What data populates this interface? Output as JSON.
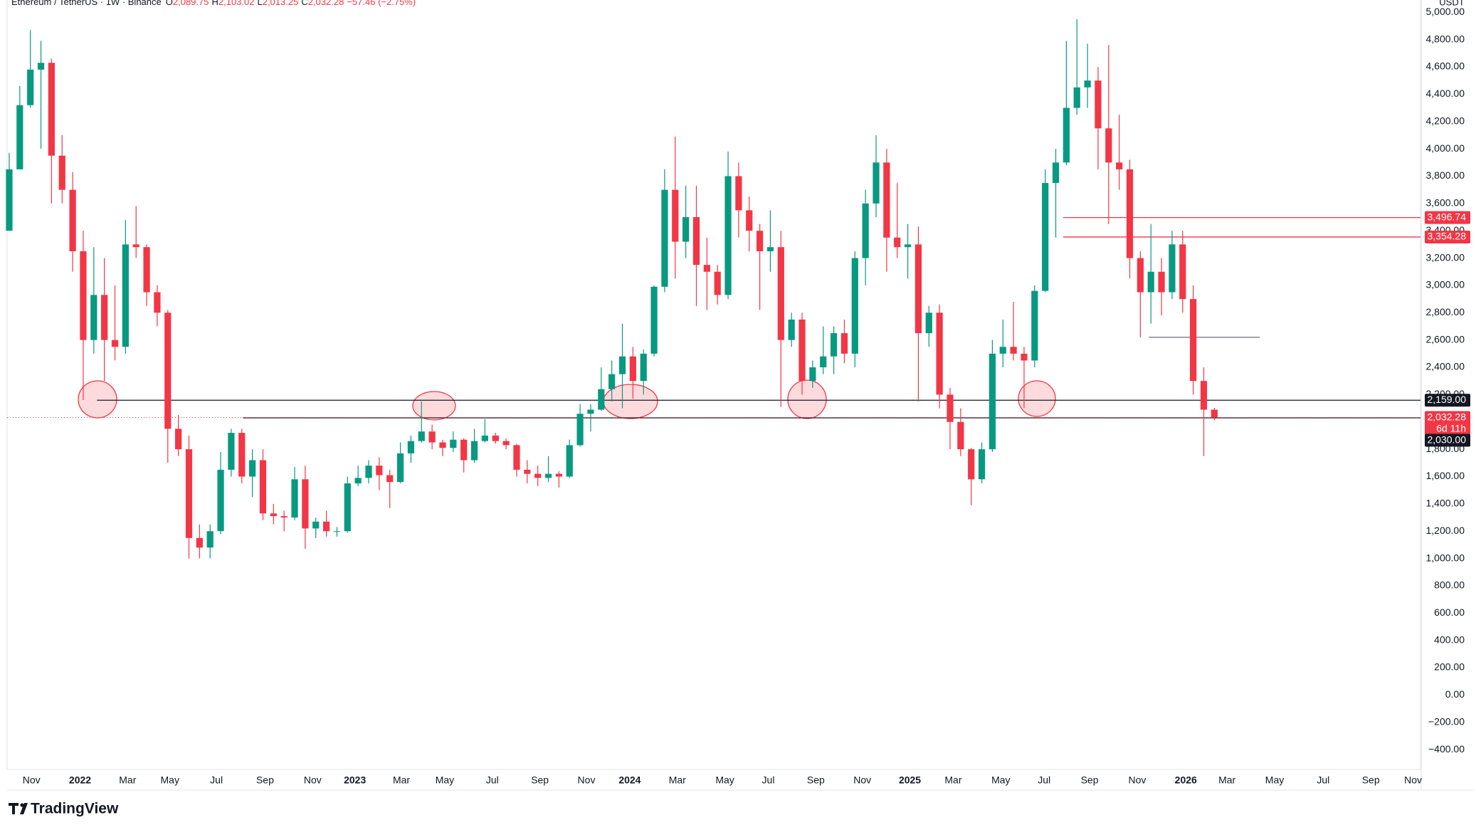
{
  "chart_data": {
    "type": "candlestick",
    "title": "Ethereum / TetherUS · 1W · Binance",
    "header": {
      "ohlc": [
        {
          "key": "O",
          "value": "2,089.75"
        },
        {
          "key": "H",
          "value": "2,103.02"
        },
        {
          "key": "L",
          "value": "2,013.25"
        },
        {
          "key": "C",
          "value": "2,032.28"
        }
      ],
      "change": "−57.46 (−2.75%)"
    },
    "currency": "USDT",
    "up_color": "#089981",
    "down_color": "#f23645",
    "open": [
      3400,
      3850,
      4320,
      4580,
      4630,
      3950,
      3700,
      3250,
      2600,
      2930,
      2600,
      2550,
      3300,
      3280,
      2950,
      2800,
      1950,
      1800,
      1150,
      1080,
      1200,
      1650,
      1920,
      1600,
      1720,
      1330,
      1310,
      1300,
      1580,
      1220,
      1270,
      1200,
      1200,
      1550,
      1590,
      1680,
      1610,
      1560,
      1770,
      1860,
      1930,
      1850,
      1810,
      1870,
      1720,
      1860,
      1900,
      1860,
      1830,
      1650,
      1620,
      1590,
      1620,
      1600,
      1830,
      2060,
      2090,
      2240,
      2350,
      2480,
      2300,
      2500,
      2990,
      3700,
      3320,
      3500,
      3150,
      3100,
      2930,
      3800,
      3550,
      3400,
      3250,
      3280,
      2600,
      2750,
      2300,
      2400,
      2480,
      2650,
      2500,
      3200,
      3600,
      3900,
      3350,
      3280,
      3300,
      2650,
      2800,
      2200,
      2000,
      1800,
      1580,
      1800,
      2500,
      2550,
      2500,
      2450,
      2960,
      3750,
      3900,
      4300,
      4450,
      4500,
      4150,
      3900,
      3850,
      3200,
      2950,
      3100,
      2950,
      3300,
      2900,
      2300,
      2089.75
    ],
    "high": [
      3970,
      4460,
      4870,
      4790,
      4660,
      4100,
      3830,
      3400,
      3280,
      3200,
      3000,
      3480,
      3580,
      3300,
      3000,
      2820,
      2050,
      1900,
      1250,
      1250,
      1780,
      1950,
      1950,
      1800,
      1800,
      1400,
      1350,
      1670,
      1680,
      1300,
      1350,
      1230,
      1600,
      1680,
      1720,
      1740,
      1650,
      1850,
      1900,
      2150,
      1980,
      1870,
      1930,
      1880,
      1950,
      2020,
      1920,
      1880,
      1840,
      1720,
      1680,
      1750,
      1640,
      1870,
      2130,
      2130,
      2400,
      2450,
      2720,
      2550,
      2530,
      3000,
      3850,
      4090,
      3730,
      3730,
      3350,
      3150,
      3980,
      3900,
      3650,
      3450,
      3550,
      3400,
      2800,
      2800,
      2450,
      2700,
      2700,
      2750,
      3250,
      3700,
      4100,
      4000,
      3750,
      3450,
      3430,
      2850,
      2860,
      2250,
      2100,
      1810,
      1850,
      2600,
      2750,
      2880,
      2550,
      3000,
      3850,
      4000,
      4790,
      4950,
      4770,
      4600,
      4760,
      4250,
      3920,
      3250,
      3450,
      3200,
      3400,
      3400,
      3000,
      2400,
      2103.02
    ],
    "low": [
      3400,
      3850,
      4300,
      4000,
      3600,
      3600,
      3100,
      2160,
      2500,
      2300,
      2450,
      2500,
      3200,
      2850,
      2700,
      1700,
      1750,
      1000,
      1000,
      1000,
      1180,
      1600,
      1550,
      1450,
      1280,
      1250,
      1200,
      1280,
      1070,
      1150,
      1160,
      1160,
      1190,
      1530,
      1550,
      1500,
      1370,
      1550,
      1700,
      1850,
      1800,
      1750,
      1780,
      1630,
      1700,
      1850,
      1840,
      1800,
      1600,
      1550,
      1530,
      1560,
      1520,
      1590,
      1820,
      1930,
      2080,
      2150,
      2100,
      2170,
      2200,
      2480,
      2950,
      3050,
      3200,
      2850,
      2820,
      2860,
      2900,
      3350,
      3250,
      2820,
      3100,
      2110,
      2550,
      2200,
      2250,
      2350,
      2350,
      2430,
      2400,
      3000,
      3500,
      3100,
      3200,
      3050,
      2150,
      2550,
      2100,
      1800,
      1750,
      1390,
      1550,
      1780,
      2400,
      2450,
      2100,
      2400,
      2950,
      3350,
      3880,
      4250,
      4300,
      3850,
      3450,
      3700,
      3050,
      2620,
      2720,
      2780,
      2900,
      2800,
      2200,
      1750,
      2013.25
    ],
    "close": [
      3850,
      4320,
      4580,
      4630,
      3950,
      3700,
      3250,
      2600,
      2930,
      2600,
      2550,
      3300,
      3280,
      2950,
      2800,
      1950,
      1800,
      1150,
      1080,
      1200,
      1650,
      1920,
      1600,
      1720,
      1330,
      1310,
      1300,
      1580,
      1220,
      1270,
      1200,
      1200,
      1550,
      1590,
      1680,
      1610,
      1560,
      1770,
      1860,
      1930,
      1850,
      1810,
      1870,
      1720,
      1860,
      1900,
      1860,
      1830,
      1650,
      1620,
      1590,
      1620,
      1600,
      1830,
      2060,
      2090,
      2240,
      2350,
      2480,
      2300,
      2500,
      2990,
      3700,
      3320,
      3500,
      3150,
      3100,
      2930,
      3800,
      3550,
      3400,
      3250,
      3280,
      2600,
      2750,
      2300,
      2400,
      2480,
      2650,
      2500,
      3200,
      3600,
      3900,
      3350,
      3280,
      3300,
      2650,
      2800,
      2200,
      2000,
      1800,
      1580,
      1800,
      2500,
      2550,
      2500,
      2450,
      2960,
      3750,
      3900,
      4300,
      4450,
      4500,
      4150,
      3900,
      3850,
      3200,
      2950,
      3100,
      2950,
      3300,
      2900,
      2300,
      2089.75,
      2032.28
    ],
    "xlim": [
      -0.2,
      133.5
    ],
    "xticks": [
      {
        "value": 2.1,
        "label": "Nov"
      },
      {
        "value": 6.7,
        "label": "2022"
      },
      {
        "value": 11.2,
        "label": "Mar"
      },
      {
        "value": 15.2,
        "label": "May"
      },
      {
        "value": 19.6,
        "label": "Jul"
      },
      {
        "value": 24.2,
        "label": "Sep"
      },
      {
        "value": 28.7,
        "label": "Nov"
      },
      {
        "value": 32.7,
        "label": "2023"
      },
      {
        "value": 37.1,
        "label": "Mar"
      },
      {
        "value": 41.2,
        "label": "May"
      },
      {
        "value": 45.7,
        "label": "Jul"
      },
      {
        "value": 50.2,
        "label": "Sep"
      },
      {
        "value": 54.6,
        "label": "Nov"
      },
      {
        "value": 58.7,
        "label": "2024"
      },
      {
        "value": 63.2,
        "label": "Mar"
      },
      {
        "value": 67.7,
        "label": "May"
      },
      {
        "value": 71.8,
        "label": "Jul"
      },
      {
        "value": 76.3,
        "label": "Sep"
      },
      {
        "value": 80.7,
        "label": "Nov"
      },
      {
        "value": 85.2,
        "label": "2025"
      },
      {
        "value": 89.3,
        "label": "Mar"
      },
      {
        "value": 93.8,
        "label": "May"
      },
      {
        "value": 97.9,
        "label": "Jul"
      },
      {
        "value": 102.2,
        "label": "Sep"
      },
      {
        "value": 106.7,
        "label": "Nov"
      },
      {
        "value": 111.3,
        "label": "2026"
      },
      {
        "value": 115.2,
        "label": "Mar"
      },
      {
        "value": 119.7,
        "label": "May"
      },
      {
        "value": 124.3,
        "label": "Jul"
      },
      {
        "value": 128.8,
        "label": "Sep"
      },
      {
        "value": 132.8,
        "label": "Nov"
      }
    ],
    "ylim": [
      -540,
      5090
    ],
    "yticks": [
      {
        "value": -400,
        "label": "−400.00"
      },
      {
        "value": -200,
        "label": "−200.00"
      },
      {
        "value": 0,
        "label": "0.00"
      },
      {
        "value": 200,
        "label": "200.00"
      },
      {
        "value": 400,
        "label": "400.00"
      },
      {
        "value": 600,
        "label": "600.00"
      },
      {
        "value": 800,
        "label": "800.00"
      },
      {
        "value": 1000,
        "label": "1,000.00"
      },
      {
        "value": 1200,
        "label": "1,200.00"
      },
      {
        "value": 1400,
        "label": "1,400.00"
      },
      {
        "value": 1600,
        "label": "1,600.00"
      },
      {
        "value": 1800,
        "label": "1,800.00"
      },
      {
        "value": 2000,
        "label": "2,000.00"
      },
      {
        "value": 2200,
        "label": "2,200.00"
      },
      {
        "value": 2400,
        "label": "2,400.00"
      },
      {
        "value": 2600,
        "label": "2,600.00"
      },
      {
        "value": 2800,
        "label": "2,800.00"
      },
      {
        "value": 3000,
        "label": "3,000.00"
      },
      {
        "value": 3200,
        "label": "3,200.00"
      },
      {
        "value": 3400,
        "label": "3,400.00"
      },
      {
        "value": 3600,
        "label": "3,600.00"
      },
      {
        "value": 3800,
        "label": "3,800.00"
      },
      {
        "value": 4000,
        "label": "4,000.00"
      },
      {
        "value": 4200,
        "label": "4,200.00"
      },
      {
        "value": 4400,
        "label": "4,400.00"
      },
      {
        "value": 4600,
        "label": "4,600.00"
      },
      {
        "value": 4800,
        "label": "4,800.00"
      },
      {
        "value": 5000,
        "label": "5,000.00"
      }
    ],
    "grid": false,
    "levels": [
      {
        "value": 3496.74,
        "label": "3,496.74",
        "start": 99.7,
        "color": "#f23645"
      },
      {
        "value": 3354.28,
        "label": "3,354.28",
        "start": 99.7,
        "color": "#f23645"
      },
      {
        "value": 2159,
        "label": "2,159.00",
        "start": 8.3,
        "color": "#131722"
      },
      {
        "value": 2030,
        "label": "2,030.00",
        "start": 22.1,
        "color": "#131722"
      },
      {
        "value": 2620,
        "start": 107.8,
        "end": 118.3,
        "color": "#787b86"
      }
    ],
    "current_price": {
      "value": 2032.28,
      "label": "2,032.28",
      "countdown": "6d 11h",
      "color": "#f23645"
    },
    "brand": "TradingView"
  }
}
